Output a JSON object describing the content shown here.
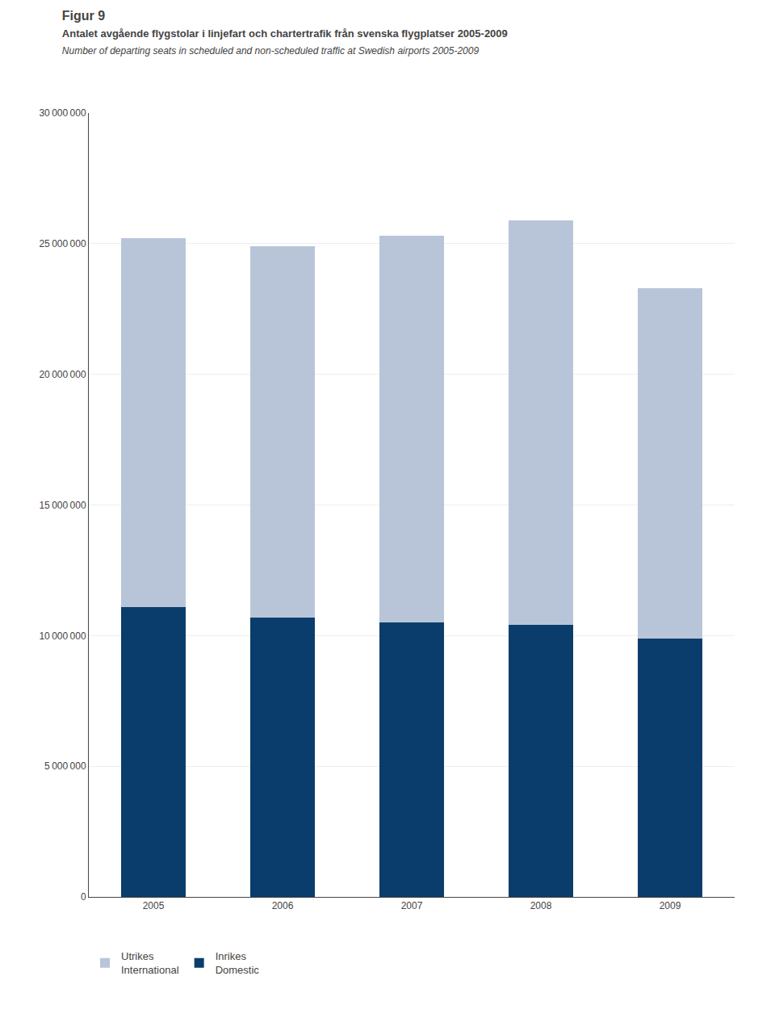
{
  "chart_data": {
    "type": "bar",
    "title": "Figur 9",
    "subtitle": "Antalet avgående flygstolar i linjefart och chartertrafik från svenska flygplatser 2005-2009",
    "annotations": [
      "Number of departing seats in scheduled and non-scheduled traffic at Swedish airports 2005-2009"
    ],
    "categories": [
      "2005",
      "2006",
      "2007",
      "2008",
      "2009"
    ],
    "series": [
      {
        "name": "Inrikes\nDomestic",
        "color": "#0a3d6b",
        "values": [
          11100000,
          10700000,
          10500000,
          10400000,
          9900000
        ]
      },
      {
        "name": "Utrikes\nInternational",
        "color": "#b8c5d9",
        "values": [
          14100000,
          14200000,
          14800000,
          15500000,
          13400000
        ]
      }
    ],
    "stacked": true,
    "ylim": [
      0,
      30000000
    ],
    "yticks": [
      0,
      {
        "value": 5000000,
        "label": "5 000 000"
      },
      {
        "value": 10000000,
        "label": "10 000 000"
      },
      {
        "value": 15000000,
        "label": "15 000 000"
      },
      {
        "value": 20000000,
        "label": "20 000 000"
      },
      {
        "value": 25000000,
        "label": "25 000 000"
      },
      {
        "value": 30000000,
        "label": "30 000 000"
      }
    ],
    "grid": true,
    "legend": "bottom"
  }
}
